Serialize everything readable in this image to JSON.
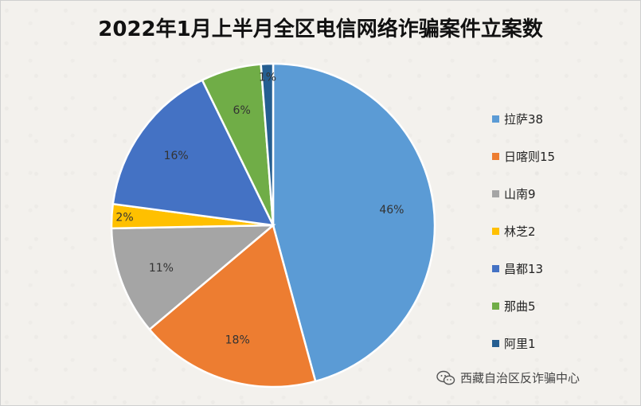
{
  "chart_data": {
    "type": "pie",
    "title": "2022年1月上半月全区电信网络诈骗案件立案数",
    "categories": [
      "拉萨",
      "日喀则",
      "山南",
      "林芝",
      "昌都",
      "那曲",
      "阿里"
    ],
    "values": [
      38,
      15,
      9,
      2,
      13,
      5,
      1
    ],
    "percent_labels": [
      "46%",
      "18%",
      "11%",
      "2%",
      "16%",
      "6%",
      "1%"
    ],
    "legend_labels": [
      "拉萨38",
      "日喀则15",
      "山南9",
      "林芝2",
      "昌都13",
      "那曲5",
      "阿里1"
    ],
    "colors": [
      "#5b9bd5",
      "#ed7d31",
      "#a5a5a5",
      "#ffc000",
      "#4472c4",
      "#70ad47",
      "#255e91"
    ],
    "legend_position": "right"
  },
  "watermark": {
    "text": "西藏自治区反诈骗中心",
    "icon": "wechat-icon"
  }
}
